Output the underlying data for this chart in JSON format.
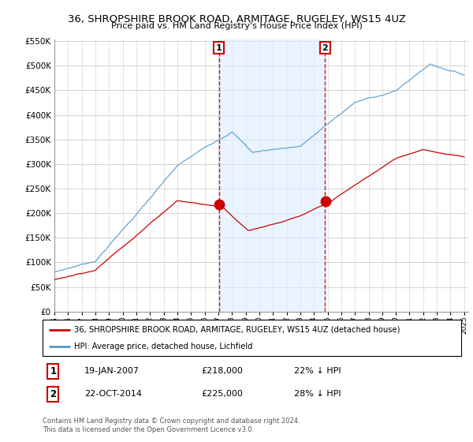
{
  "title": "36, SHROPSHIRE BROOK ROAD, ARMITAGE, RUGELEY, WS15 4UZ",
  "subtitle": "Price paid vs. HM Land Registry's House Price Index (HPI)",
  "legend_label_red": "36, SHROPSHIRE BROOK ROAD, ARMITAGE, RUGELEY, WS15 4UZ (detached house)",
  "legend_label_blue": "HPI: Average price, detached house, Lichfield",
  "sale1_date": "19-JAN-2007",
  "sale1_price": "£218,000",
  "sale1_pct": "22% ↓ HPI",
  "sale2_date": "22-OCT-2014",
  "sale2_price": "£225,000",
  "sale2_pct": "28% ↓ HPI",
  "footer": "Contains HM Land Registry data © Crown copyright and database right 2024.\nThis data is licensed under the Open Government Licence v3.0.",
  "ylim_min": 0,
  "ylim_max": 550000,
  "color_red": "#cc0000",
  "color_blue": "#5599cc",
  "color_grid": "#cccccc",
  "color_shade": "#ddeeff",
  "sale1_year": 2007.05,
  "sale2_year": 2014.82,
  "sale1_price_val": 218000,
  "sale2_price_val": 225000
}
